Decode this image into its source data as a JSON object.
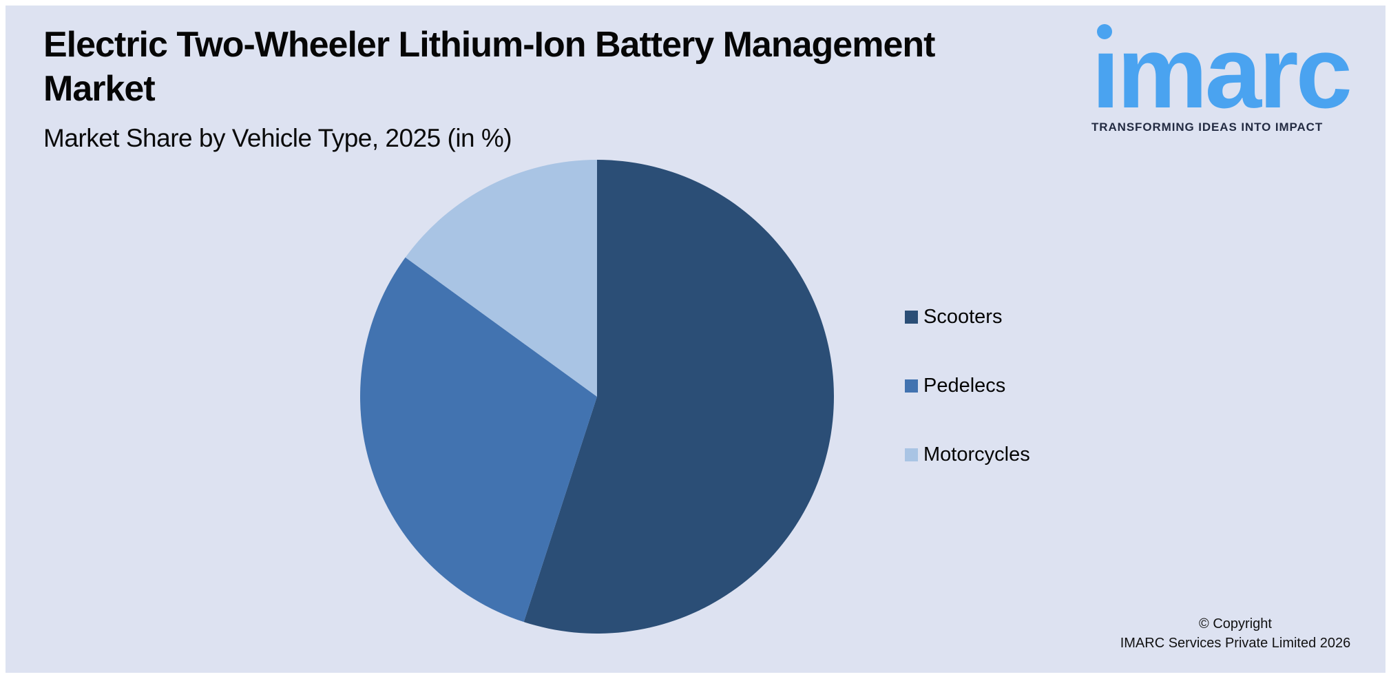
{
  "header": {
    "title_line1": "Electric Two-Wheeler Lithium-Ion Battery Management",
    "title_line2": "Market",
    "subtitle": "Market Share by Vehicle Type, 2025 (in %)"
  },
  "logo": {
    "wordmark": "imarc",
    "tagline": "TRANSFORMING IDEAS INTO IMPACT",
    "brand_color": "#4aa3f0",
    "tagline_color": "#232b42"
  },
  "chart_data": {
    "type": "pie",
    "title": "Electric Two-Wheeler Lithium-Ion Battery Management Market",
    "subtitle": "Market Share by Vehicle Type, 2025 (in %)",
    "unit": "%",
    "year": "2025",
    "categories": [
      "Scooters",
      "Pedelecs",
      "Motorcycles"
    ],
    "values": [
      55,
      30,
      15
    ],
    "colors": [
      "#2b4e76",
      "#4273b0",
      "#a9c4e4"
    ],
    "start_angle_deg": 0,
    "direction": "clockwise",
    "legend_position": "right",
    "background": "#dde2f1"
  },
  "footer": {
    "copyright_line1": "© Copyright",
    "copyright_line2": "IMARC Services Private Limited 2026"
  },
  "colors": {
    "card_background": "#dde2f1",
    "page_border": "#ffffff",
    "text": "#000000"
  }
}
